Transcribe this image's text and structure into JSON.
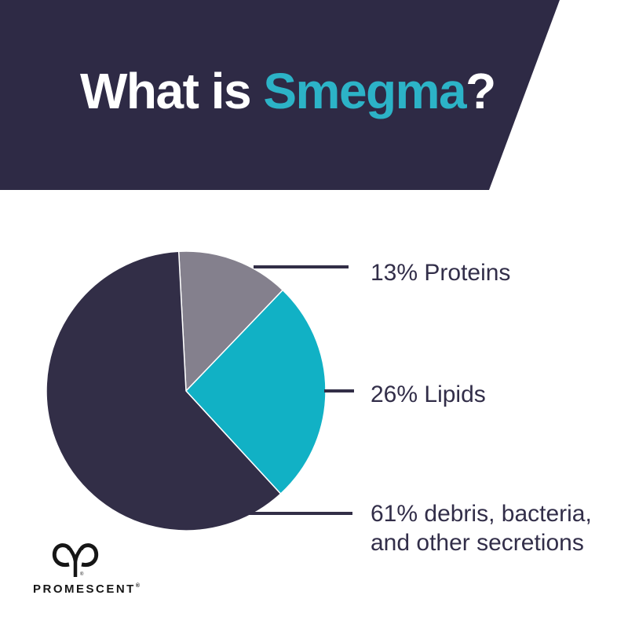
{
  "header": {
    "title_prefix": "What is ",
    "title_highlight": "Smegma",
    "title_suffix": "?",
    "bg_color": "#2e2a45",
    "highlight_color": "#2cb3c7",
    "text_color": "#ffffff"
  },
  "chart_data": {
    "type": "pie",
    "start_angle_deg": -3,
    "direction": "clockwise",
    "slices": [
      {
        "name": "proteins",
        "label": "13% Proteins",
        "value": 13,
        "color": "#84808d"
      },
      {
        "name": "lipids",
        "label": "26% Lipids",
        "value": 26,
        "color": "#11b1c5"
      },
      {
        "name": "debris",
        "label": "61% debris, bacteria, and other secretions",
        "value": 61,
        "color": "#322e47"
      }
    ],
    "legend_position": "right-callouts",
    "slice_border_color": "#ffffff"
  },
  "callouts": [
    {
      "text": "13% Proteins"
    },
    {
      "text": "26% Lipids"
    },
    {
      "text": "61% debris, bacteria,",
      "text2": "and other secretions"
    }
  ],
  "callout_line_color": "#322e47",
  "logo": {
    "brand": "PROMESCENT",
    "registered": "®",
    "symbol": "aries-ram-icon",
    "color": "#161616"
  }
}
